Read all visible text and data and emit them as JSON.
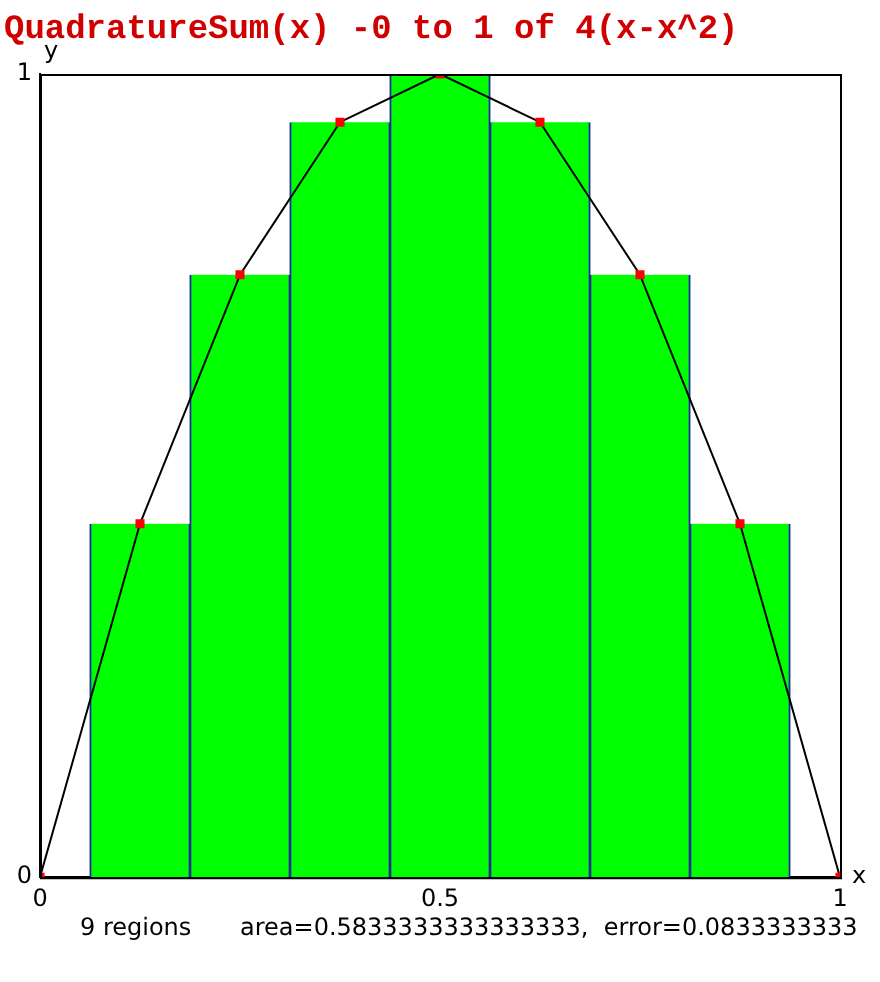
{
  "chart_data": {
    "type": "bar",
    "title": "QuadratureSum(x) -0 to 1 of 4(x-x^2)",
    "xlabel": "x",
    "ylabel": "y",
    "xlim": [
      0,
      1
    ],
    "xticks": [
      0,
      0.5,
      1
    ],
    "ylim": [
      0,
      1
    ],
    "yticks": [
      0,
      1
    ],
    "grid": false,
    "legend": false,
    "series": [
      {
        "color": "#00ff00",
        "x": [
          0.125,
          0.25,
          0.375,
          0.5,
          0.625,
          0.75,
          0.875
        ],
        "values": [
          0.44,
          0.75,
          0.94,
          1,
          0.94,
          0.75,
          0.44
        ]
      },
      {
        "type": "line",
        "color": "#000000",
        "marker": "square",
        "colors": [
          "#ff0000",
          "#ff0000",
          "#ff0000",
          "#ff0000",
          "#ff0000",
          "#ff0000",
          "#ff0000",
          "#ff0000",
          "#ff0000"
        ],
        "x": [
          0,
          0.125,
          0.25,
          0.375,
          0.5,
          0.625,
          0.75,
          0.875,
          1
        ],
        "values": [
          0,
          0.44,
          0.75,
          0.94,
          1,
          0.94,
          0.75,
          0.44,
          0
        ]
      }
    ],
    "annotations": [
      "9 regions",
      "area=0.5833333333333333,  error=0.0833333333"
    ]
  }
}
